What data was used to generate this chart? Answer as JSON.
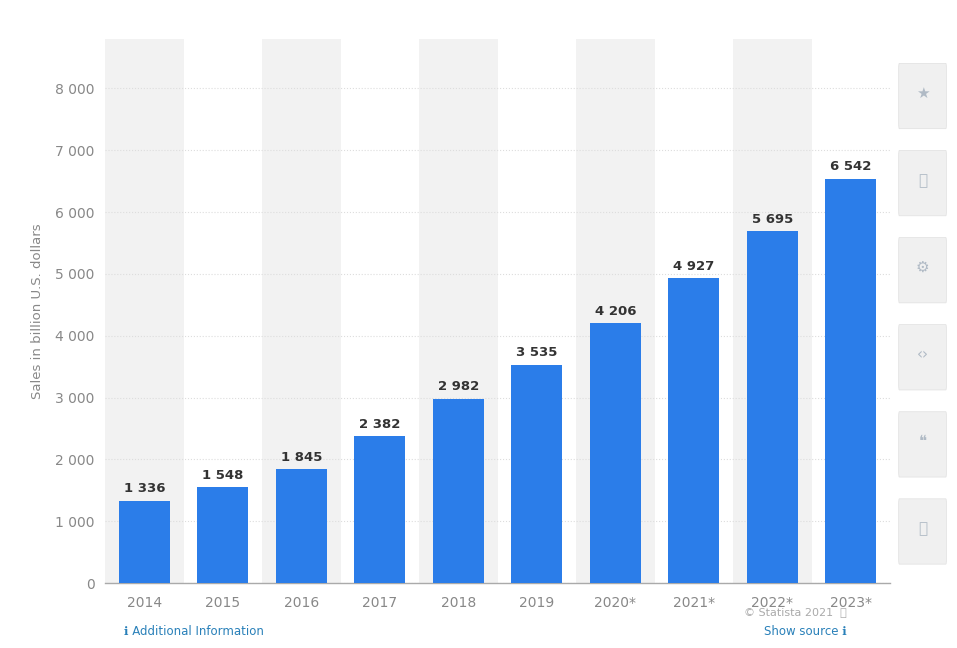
{
  "categories": [
    "2014",
    "2015",
    "2016",
    "2017",
    "2018",
    "2019",
    "2020*",
    "2021*",
    "2022*",
    "2023*"
  ],
  "values": [
    1336,
    1548,
    1845,
    2382,
    2982,
    3535,
    4206,
    4927,
    5695,
    6542
  ],
  "bar_color": "#2b7de9",
  "ylabel": "Sales in billion U.S. dollars",
  "ylim": [
    0,
    8800
  ],
  "yticks": [
    0,
    1000,
    2000,
    3000,
    4000,
    5000,
    6000,
    7000,
    8000
  ],
  "ytick_labels": [
    "0",
    "1 000",
    "2 000",
    "3 000",
    "4 000",
    "5 000",
    "6 000",
    "7 000",
    "8 000"
  ],
  "background_color": "#ffffff",
  "plot_bg_color_light": "#f2f2f2",
  "plot_bg_color_white": "#ffffff",
  "grid_color": "#dddddd",
  "label_color": "#333333",
  "tick_color": "#888888",
  "icon_panel_color": "#f8f8f8",
  "icon_color": "#b0bac5",
  "bar_width": 0.65,
  "value_label_fontsize": 9.5,
  "value_label_bold": true,
  "footer_statista": "© Statista 2021",
  "footer_info": "ℹ Additional Information",
  "footer_show": "Show source ℹ"
}
